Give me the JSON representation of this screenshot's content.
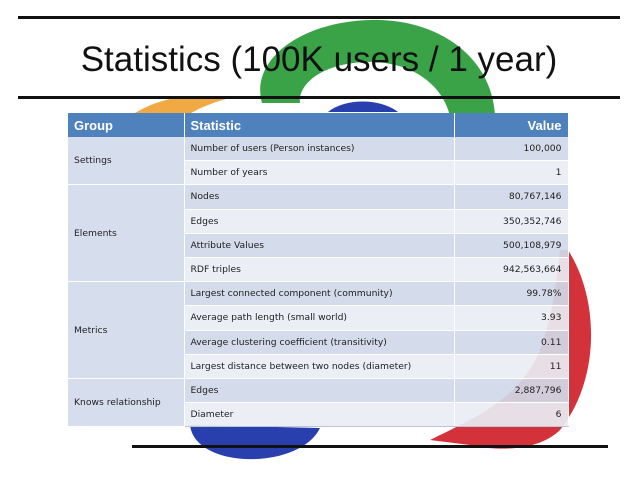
{
  "slide": {
    "title": "Statistics (100K users / 1 year)",
    "colors": {
      "header_bg": "#4f81bd",
      "green": "#2f9e3e",
      "red": "#d0212a",
      "blue": "#2a3fae",
      "orange": "#f0a030"
    }
  },
  "table": {
    "headers": [
      "Group",
      "Statistic",
      "Value"
    ],
    "groups": [
      {
        "name": "Settings",
        "rows": [
          {
            "statistic": "Number of users (Person instances)",
            "value": "100,000"
          },
          {
            "statistic": "Number of years",
            "value": "1"
          }
        ]
      },
      {
        "name": "Elements",
        "rows": [
          {
            "statistic": "Nodes",
            "value": "80,767,146"
          },
          {
            "statistic": "Edges",
            "value": "350,352,746"
          },
          {
            "statistic": "Attribute Values",
            "value": "500,108,979"
          },
          {
            "statistic": "RDF triples",
            "value": "942,563,664"
          }
        ]
      },
      {
        "name": "Metrics",
        "rows": [
          {
            "statistic": "Largest connected component (community)",
            "value": "99.78%"
          },
          {
            "statistic": "Average path length (small world)",
            "value": "3.93"
          },
          {
            "statistic": "Average clustering coefficient (transitivity)",
            "value": "0.11"
          },
          {
            "statistic": "Largest distance between two nodes (diameter)",
            "value": "11"
          }
        ]
      },
      {
        "name": "Knows relationship",
        "rows": [
          {
            "statistic": "Edges",
            "value": "2,887,796"
          },
          {
            "statistic": "Diameter",
            "value": "6"
          }
        ]
      }
    ]
  }
}
